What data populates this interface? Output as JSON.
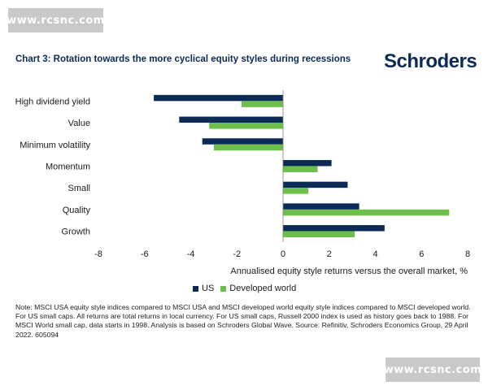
{
  "watermark": {
    "top_text": "www.rcsnc.com",
    "bottom_text": "www.rcsnc.com"
  },
  "header": {
    "title": "Chart 3: Rotation towards the more cyclical equity styles during recessions",
    "brand": "Schroders"
  },
  "chart_data": {
    "type": "bar",
    "orientation": "horizontal",
    "title": "Chart 3: Rotation towards the more cyclical equity styles during recessions",
    "categories": [
      "High dividend yield",
      "Value",
      "Minimum volatility",
      "Momentum",
      "Small",
      "Quality",
      "Growth"
    ],
    "series": [
      {
        "name": "US",
        "color": "#0b2a55",
        "values": [
          -5.6,
          -4.5,
          -3.5,
          2.1,
          2.8,
          3.3,
          4.4
        ]
      },
      {
        "name": "Developed world",
        "color": "#6cc04a",
        "values": [
          -1.8,
          -3.2,
          -3.0,
          1.5,
          1.1,
          7.2,
          3.1
        ]
      }
    ],
    "xlim": [
      -8,
      8
    ],
    "xticks": [
      "-8",
      "-6",
      "-4",
      "-2",
      "0",
      "2",
      "4",
      "6",
      "8"
    ],
    "xlabel": "Annualised equity style returns versus the overall market, %",
    "ylabel": "",
    "legend_position": "bottom-center",
    "grid": false
  },
  "note": "Note: MSCI USA equity style indices compared to MSCI USA and MSCI developed world equity style indices compared to MSCI developed world. For US small caps. All returns are total returns in local currency. For US small caps, Russell 2000 index is used as history goes back to 1988. For MSCI World small cap, data starts in 1998. Analysis is based on Schroders Global Wave. Source: Refinitiv, Schroders Economics Group, 29 April 2022. 605094"
}
